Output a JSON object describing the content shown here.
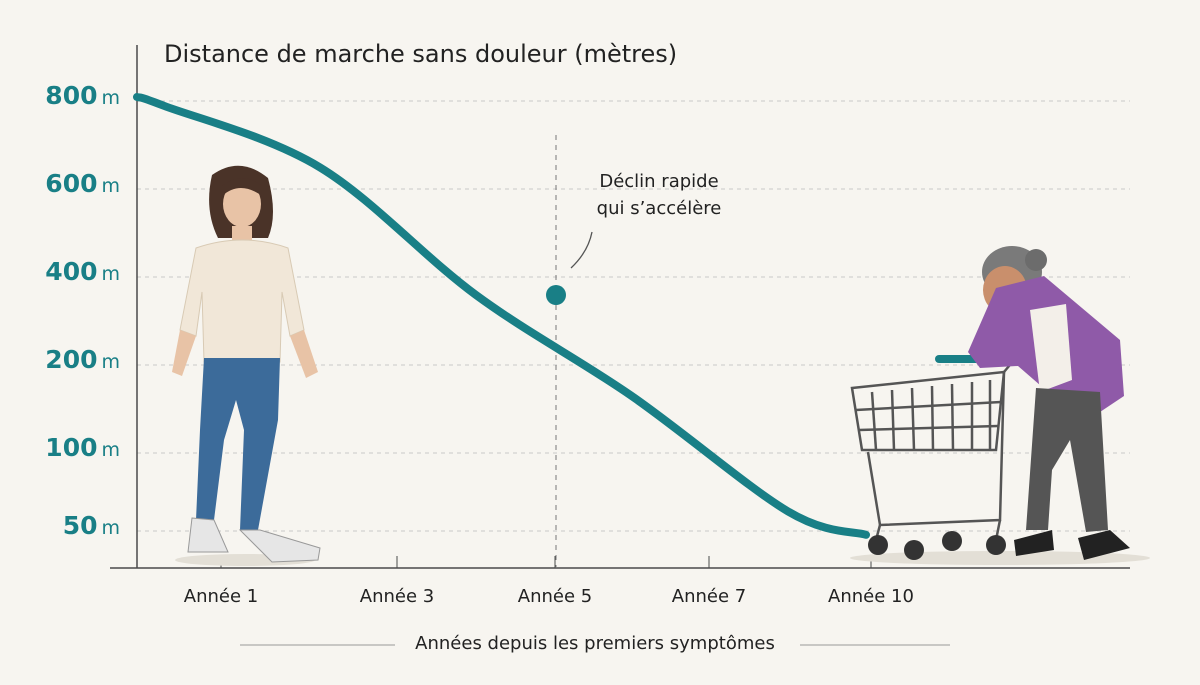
{
  "chart_data": {
    "type": "line",
    "title": "Distance de marche sans douleur (mètres)",
    "xlabel": "Années depuis les premiers symptômes",
    "ylabel": "",
    "x_ticks": [
      "Année 1",
      "Année 3",
      "Année 5",
      "Année 7",
      "Année 10"
    ],
    "y_ticks": [
      {
        "value": 800,
        "num": "800",
        "unit": "m"
      },
      {
        "value": 600,
        "num": "600",
        "unit": "m"
      },
      {
        "value": 400,
        "num": "400",
        "unit": "m"
      },
      {
        "value": 200,
        "num": "200",
        "unit": "m"
      },
      {
        "value": 100,
        "num": "100",
        "unit": "m"
      },
      {
        "value": 50,
        "num": "50",
        "unit": "m"
      }
    ],
    "y_scale": "categorical-spaced (equal spacing between 800, 600, 400, 200, 100, 50)",
    "series": [
      {
        "points": [
          {
            "x": 0,
            "y": 800
          },
          {
            "x": 1,
            "y": 780
          },
          {
            "x": 3,
            "y": 640
          },
          {
            "x": 5,
            "y": 350
          },
          {
            "x": 7,
            "y": 160
          },
          {
            "x": 9,
            "y": 60
          },
          {
            "x": 10,
            "y": 45
          }
        ],
        "highlight": {
          "x": 5,
          "y": 350
        }
      }
    ],
    "annotation": {
      "line1": "Déclin rapide",
      "line2": "qui s’accélère",
      "x": 5
    },
    "grid": true,
    "colors": {
      "line": "#197f86",
      "axis_text": "#197f86",
      "grid": "#c9c9c9",
      "background": "#f7f5f0"
    }
  },
  "illustrations": {
    "left": "woman-walking-icon",
    "right": "elderly-woman-with-shopping-cart-icon"
  }
}
